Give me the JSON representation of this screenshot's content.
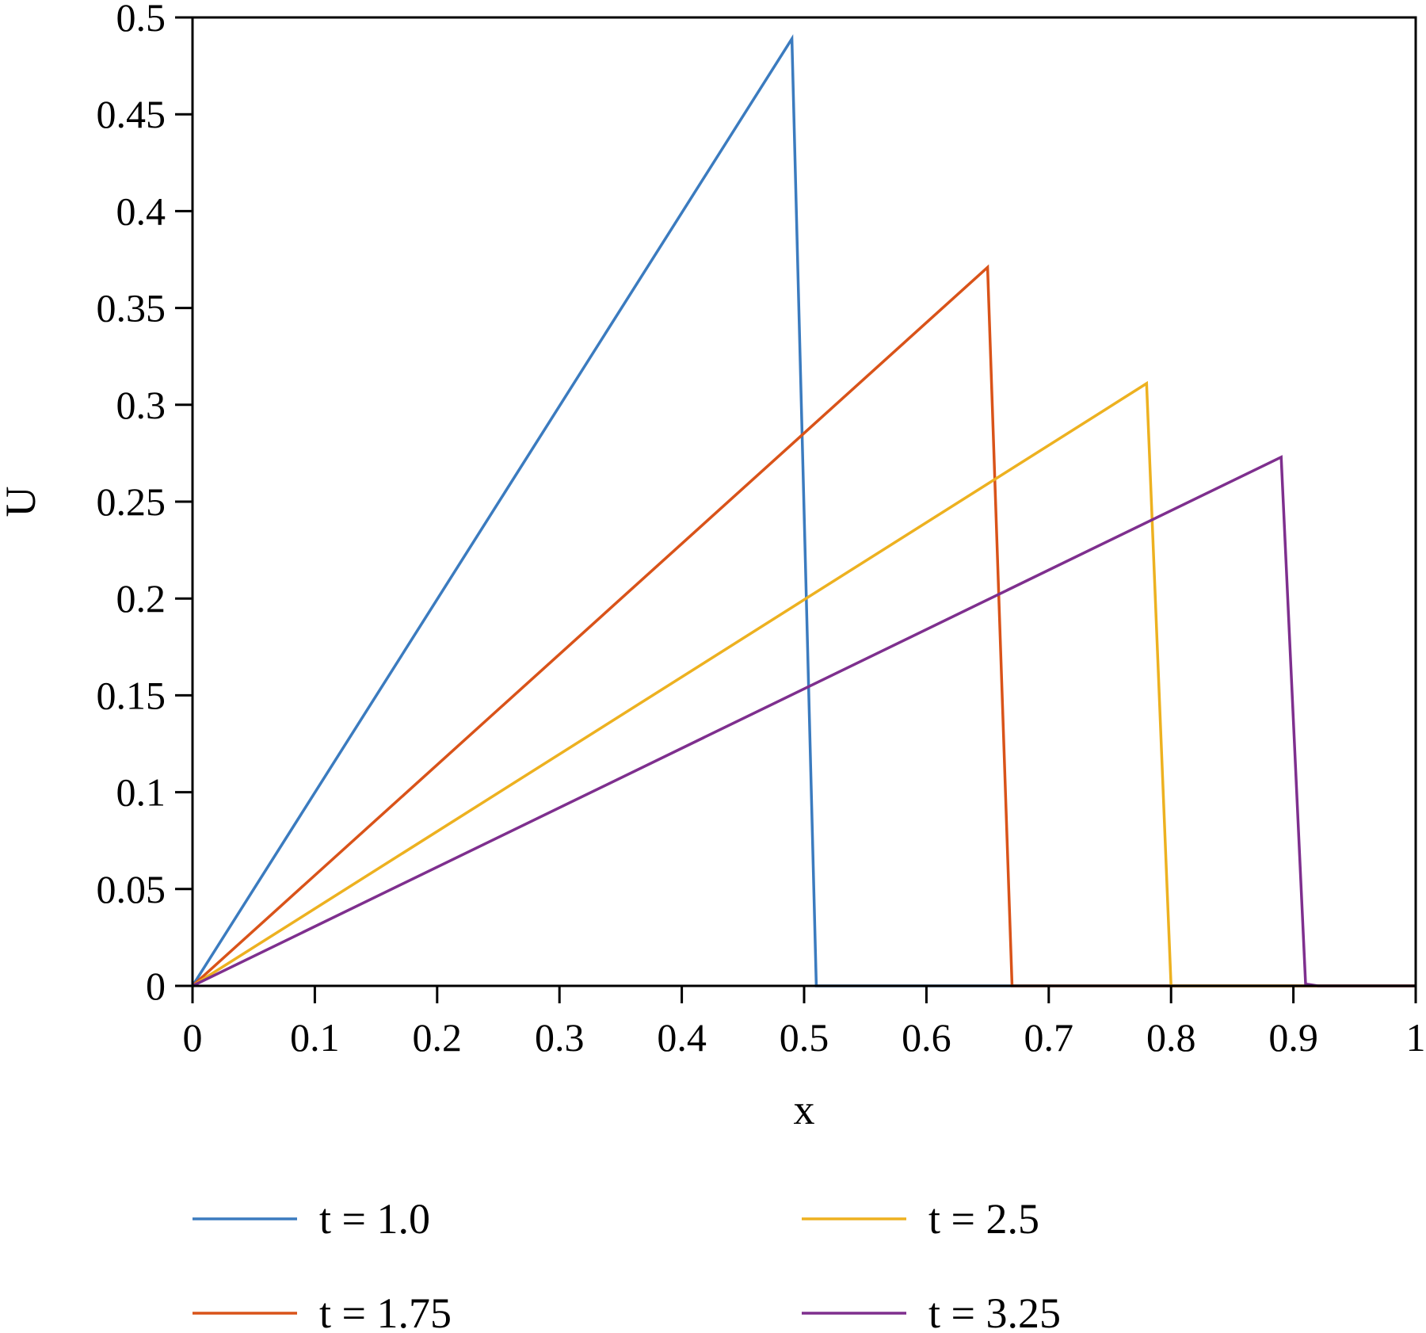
{
  "chart_data": {
    "type": "line",
    "title": "",
    "xlabel": "x",
    "ylabel": "U",
    "xlim": [
      0,
      1
    ],
    "ylim": [
      0,
      0.5
    ],
    "xticks": [
      0,
      0.1,
      0.2,
      0.3,
      0.4,
      0.5,
      0.6,
      0.7,
      0.8,
      0.9,
      1
    ],
    "xtick_labels": [
      "0",
      "0.1",
      "0.2",
      "0.3",
      "0.4",
      "0.5",
      "0.6",
      "0.7",
      "0.8",
      "0.9",
      "1"
    ],
    "yticks": [
      0,
      0.05,
      0.1,
      0.15,
      0.2,
      0.25,
      0.3,
      0.35,
      0.4,
      0.45,
      0.5
    ],
    "ytick_labels": [
      "0",
      "0.05",
      "0.1",
      "0.15",
      "0.2",
      "0.25",
      "0.3",
      "0.35",
      "0.4",
      "0.45",
      "0.5"
    ],
    "grid": false,
    "legend_position": "bottom",
    "series": [
      {
        "name": "t = 1.0",
        "color": "#3b7bbf",
        "x": [
          0,
          0.49,
          0.51,
          1.0
        ],
        "y": [
          0,
          0.489,
          0,
          0
        ]
      },
      {
        "name": "t = 1.75",
        "color": "#d95319",
        "x": [
          0,
          0.65,
          0.67,
          1.0
        ],
        "y": [
          0,
          0.371,
          0,
          0
        ]
      },
      {
        "name": "t = 2.5",
        "color": "#edb120",
        "x": [
          0,
          0.78,
          0.8,
          1.0
        ],
        "y": [
          0,
          0.311,
          0,
          0
        ]
      },
      {
        "name": "t = 3.25",
        "color": "#7e2f8e",
        "x": [
          0,
          0.89,
          0.91,
          0.92,
          1.0
        ],
        "y": [
          0,
          0.273,
          0.001,
          0,
          0
        ]
      }
    ]
  }
}
